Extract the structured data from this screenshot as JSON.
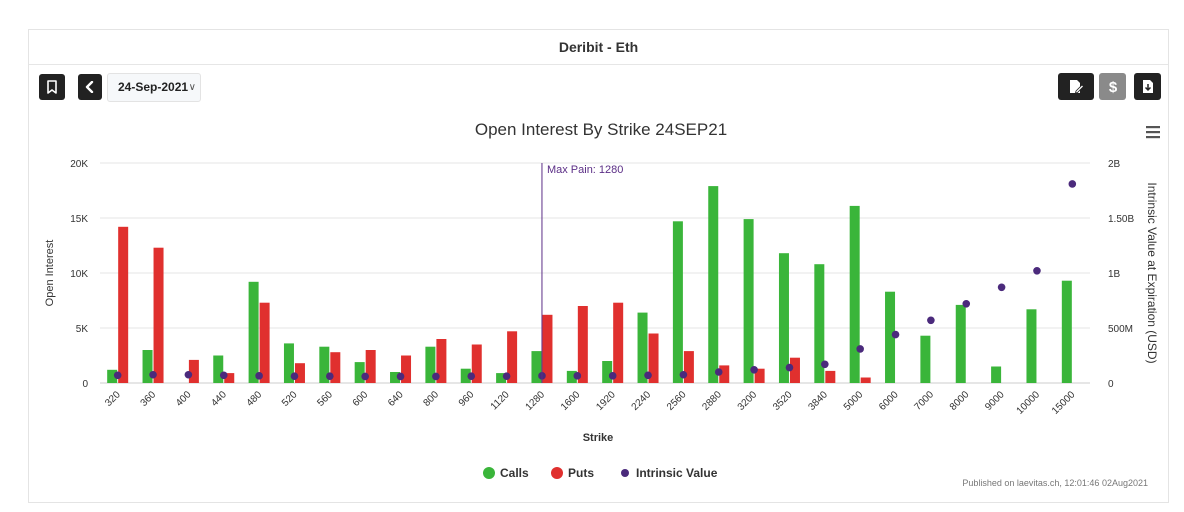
{
  "header": {
    "title": "Deribit - Eth"
  },
  "toolbar": {
    "bookmark_icon": "bookmark-icon",
    "back_icon": "chevron-left-icon",
    "date_value": "24-Sep-2021",
    "date_chevron": "∨",
    "right_icons": [
      "edit-document-icon",
      "dollar-icon",
      "download-file-icon"
    ]
  },
  "menu_icon": "hamburger-menu-icon",
  "colors": {
    "calls": "#3ab53a",
    "puts": "#e0302e",
    "intrinsic": "#4b2a7c",
    "maxpain": "#5b2e86"
  },
  "chart_data": {
    "type": "bar",
    "title": "Open Interest By Strike 24SEP21",
    "xlabel": "Strike",
    "ylabel": "Open Interest",
    "y2label": "Intrinsic Value at Expiration (USD)",
    "ylim": [
      0,
      20000
    ],
    "y2lim": [
      0,
      2000000000
    ],
    "y_ticks": [
      "0",
      "5K",
      "10K",
      "15K",
      "20K"
    ],
    "y2_ticks": [
      "0",
      "500M",
      "1B",
      "1.50B",
      "2B"
    ],
    "categories": [
      "320",
      "360",
      "400",
      "440",
      "480",
      "520",
      "560",
      "600",
      "640",
      "800",
      "960",
      "1120",
      "1280",
      "1600",
      "1920",
      "2240",
      "2560",
      "2880",
      "3200",
      "3520",
      "3840",
      "5000",
      "6000",
      "7000",
      "8000",
      "9000",
      "10000",
      "15000"
    ],
    "series": [
      {
        "name": "Calls",
        "type": "bar",
        "axis": "left",
        "values": [
          1200,
          3000,
          0,
          2500,
          9200,
          3600,
          3300,
          1900,
          1000,
          3300,
          1300,
          900,
          2900,
          1100,
          2000,
          6400,
          14700,
          17900,
          14900,
          11800,
          10800,
          16100,
          8300,
          4300,
          7100,
          1500,
          6700,
          9300
        ]
      },
      {
        "name": "Puts",
        "type": "bar",
        "axis": "left",
        "values": [
          14200,
          12300,
          2100,
          900,
          7300,
          1800,
          2800,
          3000,
          2500,
          4000,
          3500,
          4700,
          6200,
          7000,
          7300,
          4500,
          2900,
          1600,
          1300,
          2300,
          1100,
          500,
          0,
          0,
          0,
          0,
          0,
          0
        ]
      },
      {
        "name": "Intrinsic Value",
        "type": "scatter",
        "axis": "right",
        "values": [
          70000000,
          75000000,
          75000000,
          70000000,
          65000000,
          62000000,
          62000000,
          60000000,
          60000000,
          60000000,
          62000000,
          62000000,
          65000000,
          65000000,
          65000000,
          70000000,
          75000000,
          100000000,
          120000000,
          140000000,
          170000000,
          310000000,
          440000000,
          570000000,
          720000000,
          870000000,
          1020000000,
          1810000000
        ]
      }
    ],
    "annotations": [
      {
        "category": "1280",
        "text": "Max Pain: 1280"
      }
    ],
    "legend": {
      "position": "bottom-center",
      "items": [
        "Calls",
        "Puts",
        "Intrinsic Value"
      ]
    },
    "grid": true
  },
  "footer": {
    "published": "Published on laevitas.ch, 12:01:46 02Aug2021"
  }
}
